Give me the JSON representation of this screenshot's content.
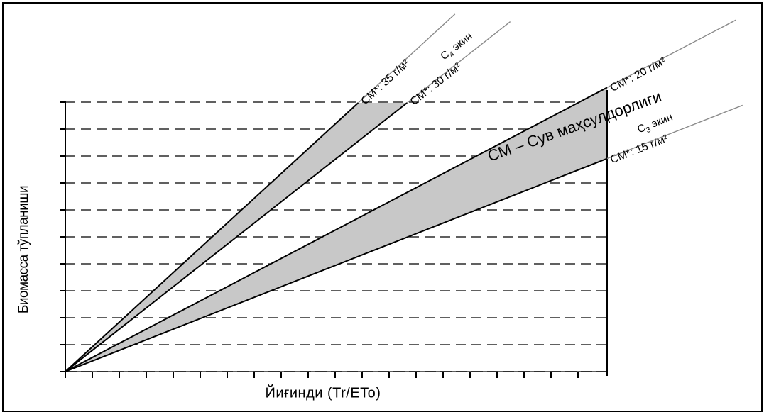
{
  "chart_data": {
    "type": "line",
    "title": "",
    "xlabel": "Йиғинди (Tr/ETo)",
    "ylabel": "Биомасса тўпланиши",
    "grid": true,
    "axis_numbers": false,
    "fill_color": "#c8c8c8",
    "series": [
      {
        "id": "cm35",
        "label": "СМ*: 35 г/м²",
        "slope": 35,
        "group": "c4",
        "edge": "upper"
      },
      {
        "id": "cm30",
        "label": "СМ*: 30 г/м²",
        "slope": 30,
        "group": "c4",
        "edge": "lower"
      },
      {
        "id": "cm20",
        "label": "СМ*: 20 г/м²",
        "slope": 20,
        "group": "c3",
        "edge": "upper"
      },
      {
        "id": "cm15",
        "label": "СМ*: 15 г/м²",
        "slope": 15,
        "group": "c3",
        "edge": "lower"
      }
    ],
    "bands": [
      {
        "id": "c4",
        "label_base": "C",
        "label_sub": "4",
        "label_rest": " экин",
        "upper": "cm35",
        "lower": "cm30"
      },
      {
        "id": "c3",
        "label_base": "C",
        "label_sub": "3",
        "label_rest": " экин",
        "upper": "cm20",
        "lower": "cm15"
      }
    ],
    "annotation": "СМ – Сув маҳсулдорлиги"
  }
}
